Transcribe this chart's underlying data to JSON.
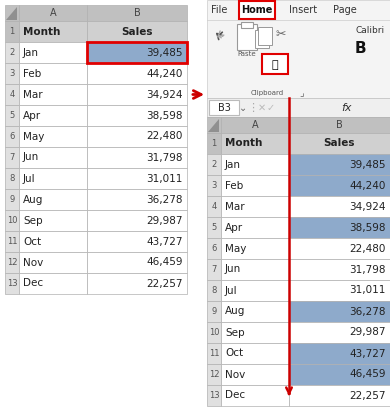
{
  "months": [
    "Month",
    "Jan",
    "Feb",
    "Mar",
    "Apr",
    "May",
    "Jun",
    "Jul",
    "Aug",
    "Sep",
    "Oct",
    "Nov",
    "Dec"
  ],
  "sales": [
    "Sales",
    "39,485",
    "44,240",
    "34,924",
    "38,598",
    "22,480",
    "31,798",
    "31,011",
    "36,278",
    "29,987",
    "43,727",
    "46,459",
    "22,257"
  ],
  "right_blue_rows": [
    2,
    3,
    5,
    9,
    11,
    12
  ],
  "left_blue_rows": [
    2
  ],
  "header_bg": "#d0d0d0",
  "cell_blue": "#8eaacb",
  "red_border": "#e00000",
  "grid_color": "#b0b0b0",
  "text_color": "#222222",
  "col_header_bg": "#c0c0c0",
  "row_num_bg": "#e0e0e0",
  "arrow_color": "#cc0000",
  "ribbon_bg": "#f4f4f4",
  "white": "#ffffff"
}
